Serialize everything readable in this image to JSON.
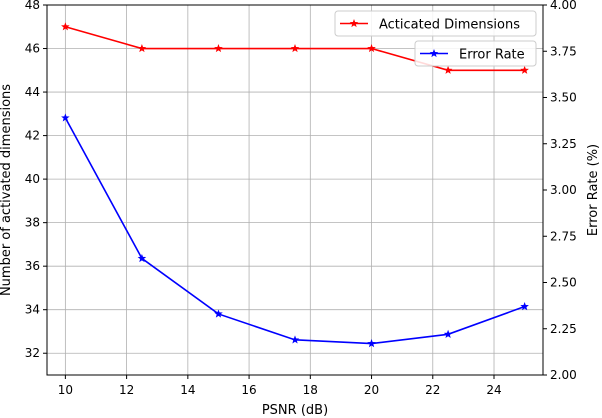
{
  "chart_data": {
    "type": "line",
    "title": "",
    "xlabel": "PSNR (dB)",
    "ylabel": "Number of activated dimensions",
    "y2label": "Error Rate (%)",
    "x": [
      10,
      12.5,
      15,
      17.5,
      20,
      22.5,
      25
    ],
    "xlim": [
      9.4,
      25.6
    ],
    "ylim": [
      31,
      48
    ],
    "y2lim": [
      2.0,
      4.0
    ],
    "xticks": [
      10,
      12,
      14,
      16,
      18,
      20,
      22,
      24
    ],
    "yticks": [
      32,
      34,
      36,
      38,
      40,
      42,
      44,
      46,
      48
    ],
    "y2ticks": [
      "2.00",
      "2.25",
      "2.50",
      "2.75",
      "3.00",
      "3.25",
      "3.50",
      "3.75",
      "4.00"
    ],
    "grid": true,
    "series": [
      {
        "name": "Acticated Dimensions",
        "axis": "left",
        "color": "#ff0000",
        "marker": "star",
        "values": [
          47,
          46,
          46,
          46,
          46,
          45,
          45
        ]
      },
      {
        "name": "Error Rate",
        "axis": "right",
        "color": "#0000ff",
        "marker": "star",
        "values": [
          3.39,
          2.63,
          2.33,
          2.19,
          2.17,
          2.22,
          2.37
        ]
      }
    ],
    "legends": [
      {
        "series": "Acticated Dimensions",
        "placement": "top-right"
      },
      {
        "series": "Error Rate",
        "placement": "top-right, below first legend"
      }
    ]
  }
}
